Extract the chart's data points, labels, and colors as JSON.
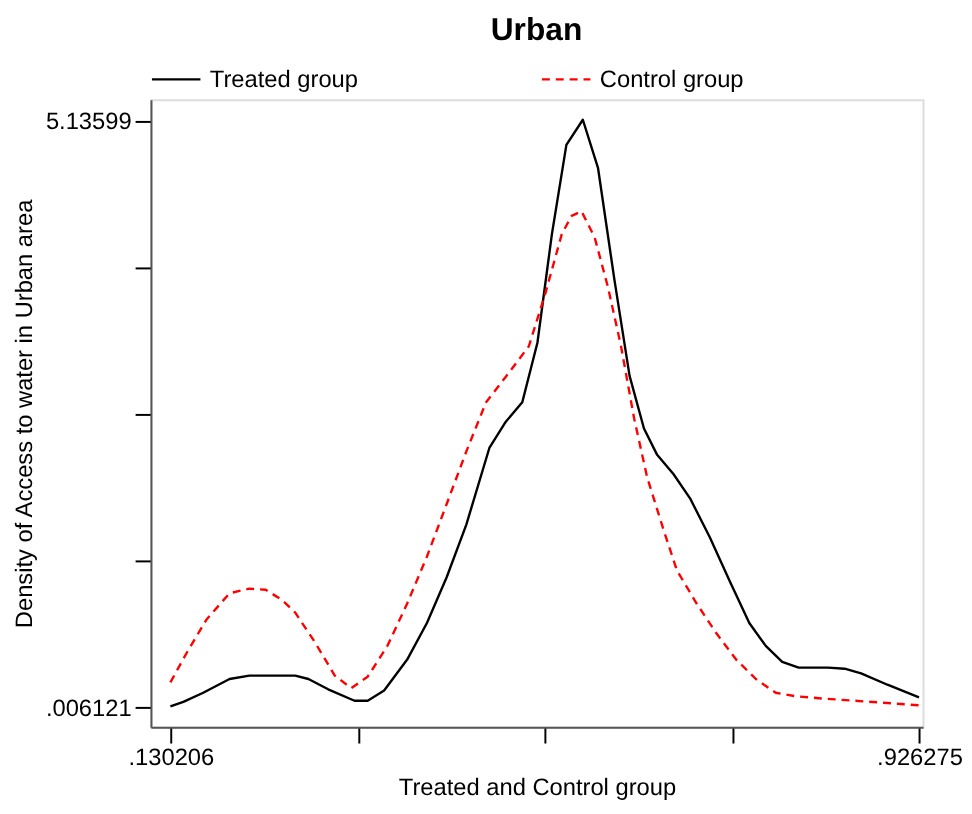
{
  "chart_data": {
    "type": "line",
    "title": "Urban",
    "xlabel": "Treated and Control group",
    "ylabel": "Density of Access to water in Urban area",
    "xlim": [
      0.109,
      0.93
    ],
    "ylim": [
      -0.167,
      5.32
    ],
    "xticks": [
      {
        "value": 0.130206,
        "label": ".130206"
      },
      {
        "value": 0.329223,
        "label": null
      },
      {
        "value": 0.52824,
        "label": null
      },
      {
        "value": 0.727258,
        "label": null
      },
      {
        "value": 0.926275,
        "label": ".926275"
      }
    ],
    "yticks": [
      {
        "value": 0.006121,
        "label": ".006121"
      },
      {
        "value": 1.288588,
        "label": null
      },
      {
        "value": 2.571055,
        "label": null
      },
      {
        "value": 3.853522,
        "label": null
      },
      5.13599
    ],
    "grid": false,
    "legend": "top",
    "marker": "none",
    "series": [
      {
        "name": "Treated group",
        "color": "#000000",
        "line_style": "solid",
        "x": [
          0.1302,
          0.144,
          0.1651,
          0.1931,
          0.2141,
          0.2421,
          0.263,
          0.277,
          0.298,
          0.326,
          0.34,
          0.3575,
          0.382,
          0.403,
          0.424,
          0.4449,
          0.4694,
          0.4869,
          0.5044,
          0.5205,
          0.5359,
          0.5513,
          0.5688,
          0.5849,
          0.6024,
          0.6185,
          0.6338,
          0.6478,
          0.6653,
          0.6828,
          0.7038,
          0.7248,
          0.7458,
          0.7633,
          0.7808,
          0.7983,
          0.8157,
          0.8297,
          0.8472,
          0.8647,
          0.8927,
          0.9263
        ],
        "values": [
          0.01,
          0.05,
          0.13,
          0.25,
          0.28,
          0.28,
          0.28,
          0.25,
          0.16,
          0.06,
          0.06,
          0.15,
          0.42,
          0.74,
          1.14,
          1.6,
          2.27,
          2.5,
          2.67,
          3.19,
          4.14,
          4.92,
          5.14,
          4.72,
          3.74,
          2.9,
          2.44,
          2.21,
          2.04,
          1.83,
          1.49,
          1.11,
          0.74,
          0.54,
          0.4,
          0.35,
          0.35,
          0.35,
          0.34,
          0.3,
          0.2,
          0.09
        ]
      },
      {
        "name": "Control group",
        "color": "#ff0000",
        "line_style": "dashed",
        "x": [
          0.1302,
          0.1476,
          0.1686,
          0.1931,
          0.2141,
          0.2316,
          0.2491,
          0.263,
          0.284,
          0.305,
          0.3225,
          0.34,
          0.361,
          0.382,
          0.403,
          0.424,
          0.4449,
          0.4659,
          0.4904,
          0.5114,
          0.5289,
          0.5464,
          0.5569,
          0.5674,
          0.5814,
          0.5954,
          0.6094,
          0.6233,
          0.6373,
          0.6548,
          0.6688,
          0.6898,
          0.7108,
          0.7318,
          0.7528,
          0.7738,
          0.7947,
          0.8227,
          0.8577,
          0.8927,
          0.9263
        ],
        "values": [
          0.22,
          0.48,
          0.77,
          1.0,
          1.04,
          1.03,
          0.94,
          0.83,
          0.57,
          0.28,
          0.17,
          0.27,
          0.54,
          0.91,
          1.32,
          1.78,
          2.24,
          2.67,
          2.93,
          3.16,
          3.62,
          4.14,
          4.3,
          4.34,
          4.11,
          3.68,
          3.16,
          2.53,
          2.01,
          1.55,
          1.2,
          0.91,
          0.65,
          0.42,
          0.25,
          0.13,
          0.1,
          0.08,
          0.06,
          0.04,
          0.02
        ]
      }
    ]
  }
}
